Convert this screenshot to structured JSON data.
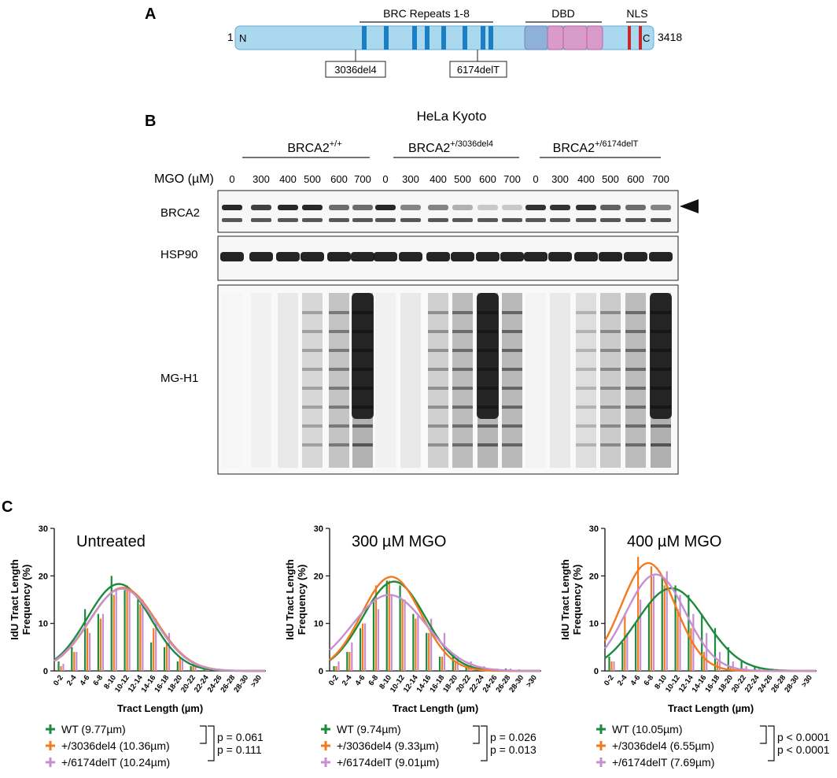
{
  "panel_a": {
    "letter": "A",
    "header_brc": "BRC Repeats 1-8",
    "header_dbd": "DBD",
    "header_nls": "NLS",
    "start_num": "1",
    "end_num": "3418",
    "n_term": "N",
    "c_term": "C",
    "mutations": [
      "3036del4",
      "6174delT"
    ],
    "colors": {
      "protein": "#a9d8ef",
      "brc": "#1a7fc4",
      "dbd_ob": "#8fb0d8",
      "dbd_pink": "#d99bc9",
      "nls": "#c8282d"
    }
  },
  "panel_b": {
    "letter": "B",
    "cell_line": "HeLa Kyoto",
    "groups": [
      {
        "base": "BRCA2",
        "sup": "+/+"
      },
      {
        "base": "BRCA2",
        "sup": "+/3036del4"
      },
      {
        "base": "BRCA2",
        "sup": "+/6174delT"
      }
    ],
    "mgo_label": "MGO (µM)",
    "doses": [
      "0",
      "300",
      "400",
      "500",
      "600",
      "700",
      "0",
      "300",
      "400",
      "500",
      "600",
      "700",
      "0",
      "300",
      "400",
      "500",
      "600",
      "700"
    ],
    "blots": [
      "BRCA2",
      "HSP90",
      "MG-H1"
    ]
  },
  "panel_c": {
    "letter": "C",
    "xlabel": "Tract Length (µm)",
    "ylabel_line1": "IdU Tract Length",
    "ylabel_line2": "Frequency (%)",
    "categories": [
      "0-2",
      "2-4",
      "4-6",
      "6-8",
      "8-10",
      "10-12",
      "12-14",
      "14-16",
      "16-18",
      "18-20",
      "20-22",
      "22-24",
      "24-26",
      "26-28",
      "28-30",
      ">30"
    ],
    "y_ticks": [
      "0",
      "10",
      "20",
      "30"
    ],
    "colors": {
      "WT": "#1e8a3c",
      "3036": "#f47a20",
      "6174": "#c58fd0"
    }
  },
  "chart_data": [
    {
      "type": "bar",
      "title": "Untreated",
      "xlabel": "Tract Length (µm)",
      "ylabel": "IdU Tract Length Frequency (%)",
      "ylim": [
        0,
        30
      ],
      "categories": [
        "0-2",
        "2-4",
        "4-6",
        "6-8",
        "8-10",
        "10-12",
        "12-14",
        "14-16",
        "16-18",
        "18-20",
        "20-22",
        "22-24",
        "24-26",
        "26-28",
        "28-30",
        ">30"
      ],
      "series": [
        {
          "name": "WT (9.77µm)",
          "values": [
            2,
            5,
            13,
            12,
            20,
            17,
            15,
            6,
            5,
            2,
            1,
            0.5,
            0.3,
            0.2,
            0.1,
            0
          ]
        },
        {
          "name": "+/3036del4 (10.36µm)",
          "values": [
            1,
            4,
            9,
            11,
            16,
            18,
            14,
            9,
            6,
            3,
            1.5,
            0.5,
            0.3,
            0.2,
            0.1,
            0
          ]
        },
        {
          "name": "+/6174delT (10.24µm)",
          "values": [
            1.5,
            4,
            8,
            12,
            17,
            17,
            15,
            11,
            8,
            2.5,
            1,
            0.5,
            0.3,
            0.2,
            0.1,
            0
          ]
        }
      ],
      "fits": [
        {
          "name": "WT (9.77µm)",
          "mean": 9.77,
          "peak": 18.3,
          "sigma": 4.8
        },
        {
          "name": "+/3036del4 (10.36µm)",
          "mean": 10.36,
          "peak": 17.5,
          "sigma": 5.0
        },
        {
          "name": "+/6174delT (10.24µm)",
          "mean": 10.24,
          "peak": 17.3,
          "sigma": 5.0
        }
      ],
      "stats": [
        "p = 0.061",
        "p = 0.111"
      ]
    },
    {
      "type": "bar",
      "title": "300 µM MGO",
      "xlabel": "Tract Length (µm)",
      "ylabel": "IdU Tract Length Frequency (%)",
      "ylim": [
        0,
        30
      ],
      "categories": [
        "0-2",
        "2-4",
        "4-6",
        "6-8",
        "8-10",
        "10-12",
        "12-14",
        "14-16",
        "16-18",
        "18-20",
        "20-22",
        "22-24",
        "24-26",
        "26-28",
        "28-30",
        ">30"
      ],
      "series": [
        {
          "name": "WT (9.74µm)",
          "values": [
            1,
            4,
            9,
            15,
            19,
            18,
            12,
            8,
            3,
            3,
            1,
            1,
            0.5,
            0.5,
            0.3,
            0
          ]
        },
        {
          "name": "+/3036del4 (9.33µm)",
          "values": [
            1,
            4,
            10,
            18,
            19,
            15,
            11,
            8,
            3,
            2,
            1,
            0.5,
            0.3,
            0.2,
            0.1,
            0
          ]
        },
        {
          "name": "+/6174delT (9.01µm)",
          "values": [
            2,
            6,
            10,
            13,
            16,
            15,
            12,
            11,
            8,
            3,
            2,
            1,
            0.5,
            0.5,
            0.2,
            0
          ]
        }
      ],
      "fits": [
        {
          "name": "WT (9.74µm)",
          "mean": 9.74,
          "peak": 18.8,
          "sigma": 4.7
        },
        {
          "name": "+/3036del4 (9.33µm)",
          "mean": 9.33,
          "peak": 19.8,
          "sigma": 4.5
        },
        {
          "name": "+/6174delT (9.01µm)",
          "mean": 9.01,
          "peak": 16.0,
          "sigma": 5.6
        }
      ],
      "stats": [
        "p = 0.026",
        "p = 0.013"
      ]
    },
    {
      "type": "bar",
      "title": "400 µM MGO",
      "xlabel": "Tract Length (µm)",
      "ylabel": "IdU Tract Length Frequency (%)",
      "ylim": [
        0,
        30
      ],
      "categories": [
        "0-2",
        "2-4",
        "4-6",
        "6-8",
        "8-10",
        "10-12",
        "12-14",
        "14-16",
        "16-18",
        "18-20",
        "20-22",
        "22-24",
        "24-26",
        "26-28",
        "28-30",
        ">30"
      ],
      "series": [
        {
          "name": "WT (10.05µm)",
          "values": [
            3,
            6,
            10,
            14,
            20,
            18,
            16,
            12,
            9,
            5,
            2,
            1,
            0.5,
            0.3,
            0.2,
            0
          ]
        },
        {
          "name": "+/3036del4 (6.55µm)",
          "values": [
            2,
            12,
            24,
            22,
            18,
            13,
            9,
            4,
            2,
            1,
            0.5,
            0.3,
            0.2,
            0.1,
            0.1,
            0
          ]
        },
        {
          "name": "+/6174delT (7.69µm)",
          "values": [
            2,
            8,
            15,
            20,
            21,
            16,
            12,
            8,
            4,
            2,
            1,
            0.5,
            0.3,
            0.2,
            0.1,
            0
          ]
        }
      ],
      "fits": [
        {
          "name": "WT (10.05µm)",
          "mean": 10.05,
          "peak": 17.4,
          "sigma": 5.2
        },
        {
          "name": "+/3036del4 (6.55µm)",
          "mean": 6.55,
          "peak": 22.7,
          "sigma": 4.1
        },
        {
          "name": "+/6174delT (7.69µm)",
          "mean": 7.69,
          "peak": 20.3,
          "sigma": 4.5
        }
      ],
      "stats": [
        "p < 0.0001",
        "p < 0.0001"
      ]
    }
  ]
}
